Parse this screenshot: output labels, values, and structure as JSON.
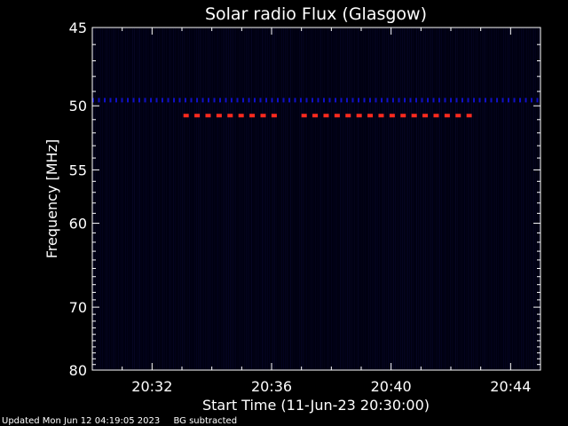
{
  "chart_data": {
    "type": "heatmap",
    "title": "Solar radio Flux (Glasgow)",
    "xlabel": "Start Time (11-Jun-23 20:30:00)",
    "ylabel": "Frequency [MHz]",
    "x_unit": "minutes after 20:30:00",
    "xlim": [
      0,
      15
    ],
    "ylim": [
      80,
      45
    ],
    "y_scale": "reciprocal",
    "x_ticks": [
      {
        "minute": 2,
        "label": "20:32"
      },
      {
        "minute": 6,
        "label": "20:36"
      },
      {
        "minute": 10,
        "label": "20:40"
      },
      {
        "minute": 14,
        "label": "20:44"
      }
    ],
    "y_ticks": [
      45,
      50,
      55,
      60,
      70,
      80
    ],
    "background_color": "#000010",
    "series": [
      {
        "frequency_mhz": 49.6,
        "color": "#1010c8",
        "segments": [
          [
            0.0,
            15.0
          ]
        ]
      },
      {
        "frequency_mhz": 50.7,
        "color": "#ff2a1e",
        "segments": [
          [
            3.05,
            6.2
          ],
          [
            7.0,
            12.7
          ]
        ]
      }
    ]
  },
  "footer": {
    "updated": "Updated Mon Jun 12 04:19:05 2023",
    "note": "BG subtracted"
  }
}
